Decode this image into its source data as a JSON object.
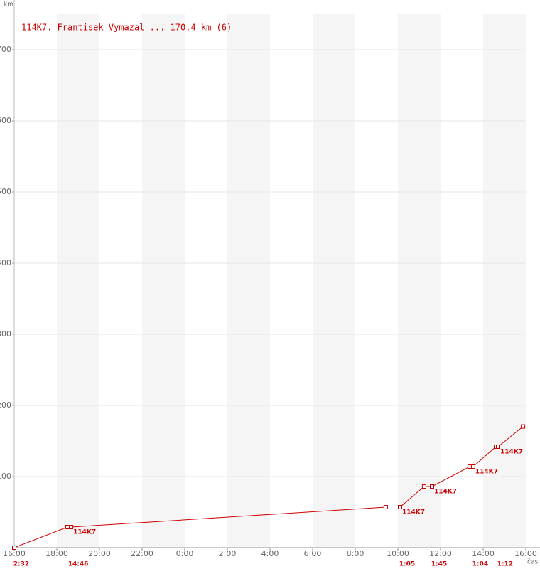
{
  "chart_data": {
    "type": "line",
    "title": "114K7. Frantisek Vymazal ... 170.4 km (6)",
    "y_label": "km",
    "x_label": "čas",
    "x": [
      0,
      2.5,
      2.67,
      17.43,
      null,
      18.1,
      19.23,
      19.6,
      21.37,
      21.53,
      22.6,
      22.7,
      23.87
    ],
    "series": [
      {
        "name": "114K7. Frantisek Vymazal ... 170.4 km (6)",
        "color": "#cc0000",
        "values": [
          0,
          29,
          29,
          57,
          null,
          57,
          86,
          86,
          114,
          114,
          142,
          142,
          170.4
        ]
      }
    ],
    "xlim": [
      0,
      24
    ],
    "xticks": [
      {
        "value": 0,
        "label": "16:00"
      },
      {
        "value": 2,
        "label": "18:00"
      },
      {
        "value": 4,
        "label": "20:00"
      },
      {
        "value": 6,
        "label": "22:00"
      },
      {
        "value": 8,
        "label": "0:00"
      },
      {
        "value": 10,
        "label": "2:00"
      },
      {
        "value": 12,
        "label": "4:00"
      },
      {
        "value": 14,
        "label": "6:00"
      },
      {
        "value": 16,
        "label": "8:00"
      },
      {
        "value": 18,
        "label": "10:00"
      },
      {
        "value": 20,
        "label": "12:00"
      },
      {
        "value": 22,
        "label": "14:00"
      },
      {
        "value": 24,
        "label": "16:00"
      }
    ],
    "ylim": [
      0,
      750
    ],
    "yticks": [
      100,
      200,
      300,
      400,
      500,
      600,
      700
    ],
    "grid": true,
    "point_labels": [
      {
        "point": 2,
        "label": "114K7"
      },
      {
        "point": 5,
        "label": "114K7"
      },
      {
        "point": 7,
        "label": "114K7"
      },
      {
        "point": 9,
        "label": "114K7"
      },
      {
        "point": 11,
        "label": "114K7"
      }
    ],
    "stop_labels": [
      {
        "point": 0,
        "label": "2:32"
      },
      {
        "point": 2,
        "label": "14:46"
      },
      {
        "point": 5,
        "label": "1:05"
      },
      {
        "point": 7,
        "label": "1:45"
      },
      {
        "point": 9,
        "label": "1:04"
      },
      {
        "point": 11,
        "label": "1:12"
      }
    ]
  }
}
